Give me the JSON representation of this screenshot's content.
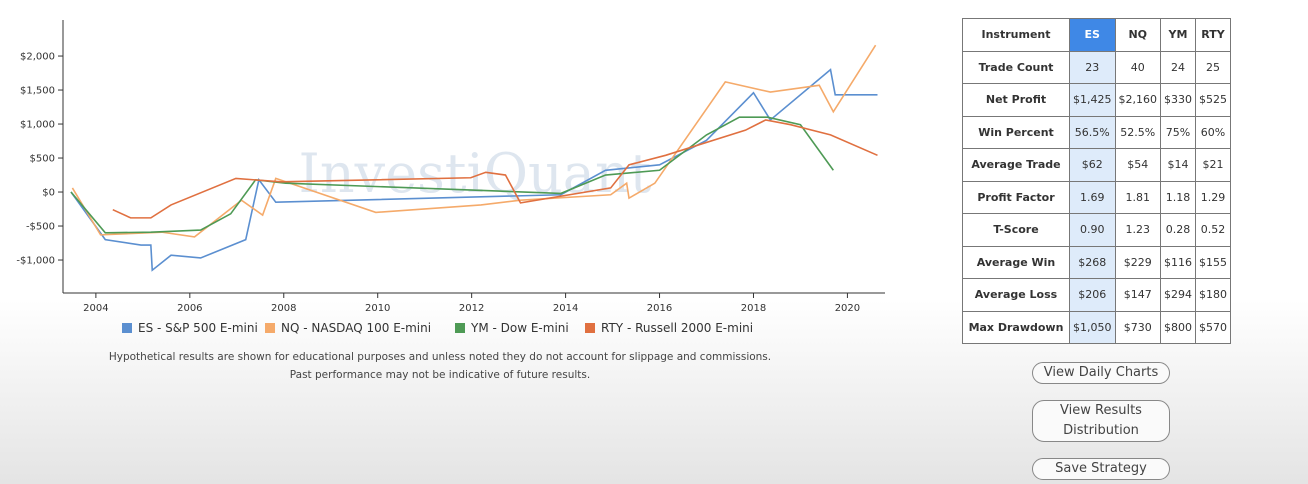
{
  "chart_data": {
    "type": "line",
    "watermark": "InvestiQuant",
    "xlim": [
      2003.3,
      2020.8
    ],
    "xticks": [
      2004,
      2006,
      2008,
      2010,
      2012,
      2014,
      2016,
      2018,
      2020
    ],
    "ylim": [
      -1485,
      2530
    ],
    "yticks": [
      {
        "value": -1000,
        "label": "-$1,000"
      },
      {
        "value": -500,
        "label": "-$500"
      },
      {
        "value": 0,
        "label": "$0"
      },
      {
        "value": 500,
        "label": "$500"
      },
      {
        "value": 1000,
        "label": "$1,000"
      },
      {
        "value": 1500,
        "label": "$1,500"
      },
      {
        "value": 2000,
        "label": "$2,000"
      }
    ],
    "series": [
      {
        "name": "ES - S&P 500 E-mini",
        "color": "#5b8fd0",
        "x": [
          2003.47,
          2004.2,
          2004.96,
          2005.17,
          2005.2,
          2005.6,
          2006.23,
          2007.19,
          2007.47,
          2007.83,
          2013.9,
          2014.85,
          2016.0,
          2017.0,
          2018.0,
          2018.36,
          2019.64,
          2019.74,
          2020.64
        ],
        "values": [
          0,
          -700,
          -780,
          -780,
          -1150,
          -930,
          -970,
          -700,
          180,
          -150,
          -40,
          320,
          400,
          760,
          1460,
          1060,
          1800,
          1430,
          1430
        ]
      },
      {
        "name": "NQ - NASDAQ 100 E-mini",
        "color": "#f5aa6a",
        "x": [
          2003.5,
          2004.1,
          2005.4,
          2006.1,
          2007.1,
          2007.55,
          2007.83,
          2009.96,
          2012.2,
          2013.04,
          2014.96,
          2015.3,
          2015.35,
          2015.9,
          2017.4,
          2018.36,
          2019.4,
          2019.7,
          2020.6
        ],
        "values": [
          60,
          -630,
          -590,
          -660,
          -120,
          -340,
          200,
          -300,
          -190,
          -120,
          -40,
          130,
          -90,
          130,
          1620,
          1470,
          1570,
          1180,
          2160
        ]
      },
      {
        "name": "YM - Dow E-mini",
        "color": "#4e9a55",
        "x": [
          2003.47,
          2004.2,
          2005.17,
          2006.23,
          2006.87,
          2007.4,
          2008.04,
          2013.9,
          2014.85,
          2016.0,
          2017.0,
          2017.7,
          2018.3,
          2019.0,
          2019.7
        ],
        "values": [
          0,
          -600,
          -590,
          -560,
          -320,
          180,
          130,
          -20,
          250,
          320,
          840,
          1100,
          1100,
          990,
          320
        ]
      },
      {
        "name": "RTY - Russell 2000 E-mini",
        "color": "#e07040",
        "x": [
          2004.36,
          2004.74,
          2005.17,
          2005.6,
          2006.98,
          2007.94,
          2011.98,
          2012.3,
          2012.72,
          2013.04,
          2014.96,
          2015.35,
          2016.13,
          2017.83,
          2018.26,
          2018.79,
          2019.64,
          2020.64
        ],
        "values": [
          -260,
          -380,
          -380,
          -190,
          200,
          150,
          210,
          290,
          250,
          -160,
          60,
          400,
          540,
          910,
          1060,
          990,
          840,
          540
        ]
      }
    ]
  },
  "disclaimer": [
    "Hypothetical results are shown for educational purposes and unless noted they do not account for slippage and commissions.",
    "Past performance may not be indicative of future results."
  ],
  "table": {
    "header": [
      "Instrument",
      "ES",
      "NQ",
      "YM",
      "RTY"
    ],
    "rows": [
      [
        "Trade Count",
        "23",
        "40",
        "24",
        "25"
      ],
      [
        "Net Profit",
        "$1,425",
        "$2,160",
        "$330",
        "$525"
      ],
      [
        "Win Percent",
        "56.5%",
        "52.5%",
        "75%",
        "60%"
      ],
      [
        "Average Trade",
        "$62",
        "$54",
        "$14",
        "$21"
      ],
      [
        "Profit Factor",
        "1.69",
        "1.81",
        "1.18",
        "1.29"
      ],
      [
        "T-Score",
        "0.90",
        "1.23",
        "0.28",
        "0.52"
      ],
      [
        "Average Win",
        "$268",
        "$229",
        "$116",
        "$155"
      ],
      [
        "Average Loss",
        "$206",
        "$147",
        "$294",
        "$180"
      ],
      [
        "Max Drawdown",
        "$1,050",
        "$730",
        "$800",
        "$570"
      ]
    ]
  },
  "buttons": [
    "View Daily Charts",
    "View Results Distribution",
    "Save Strategy"
  ]
}
